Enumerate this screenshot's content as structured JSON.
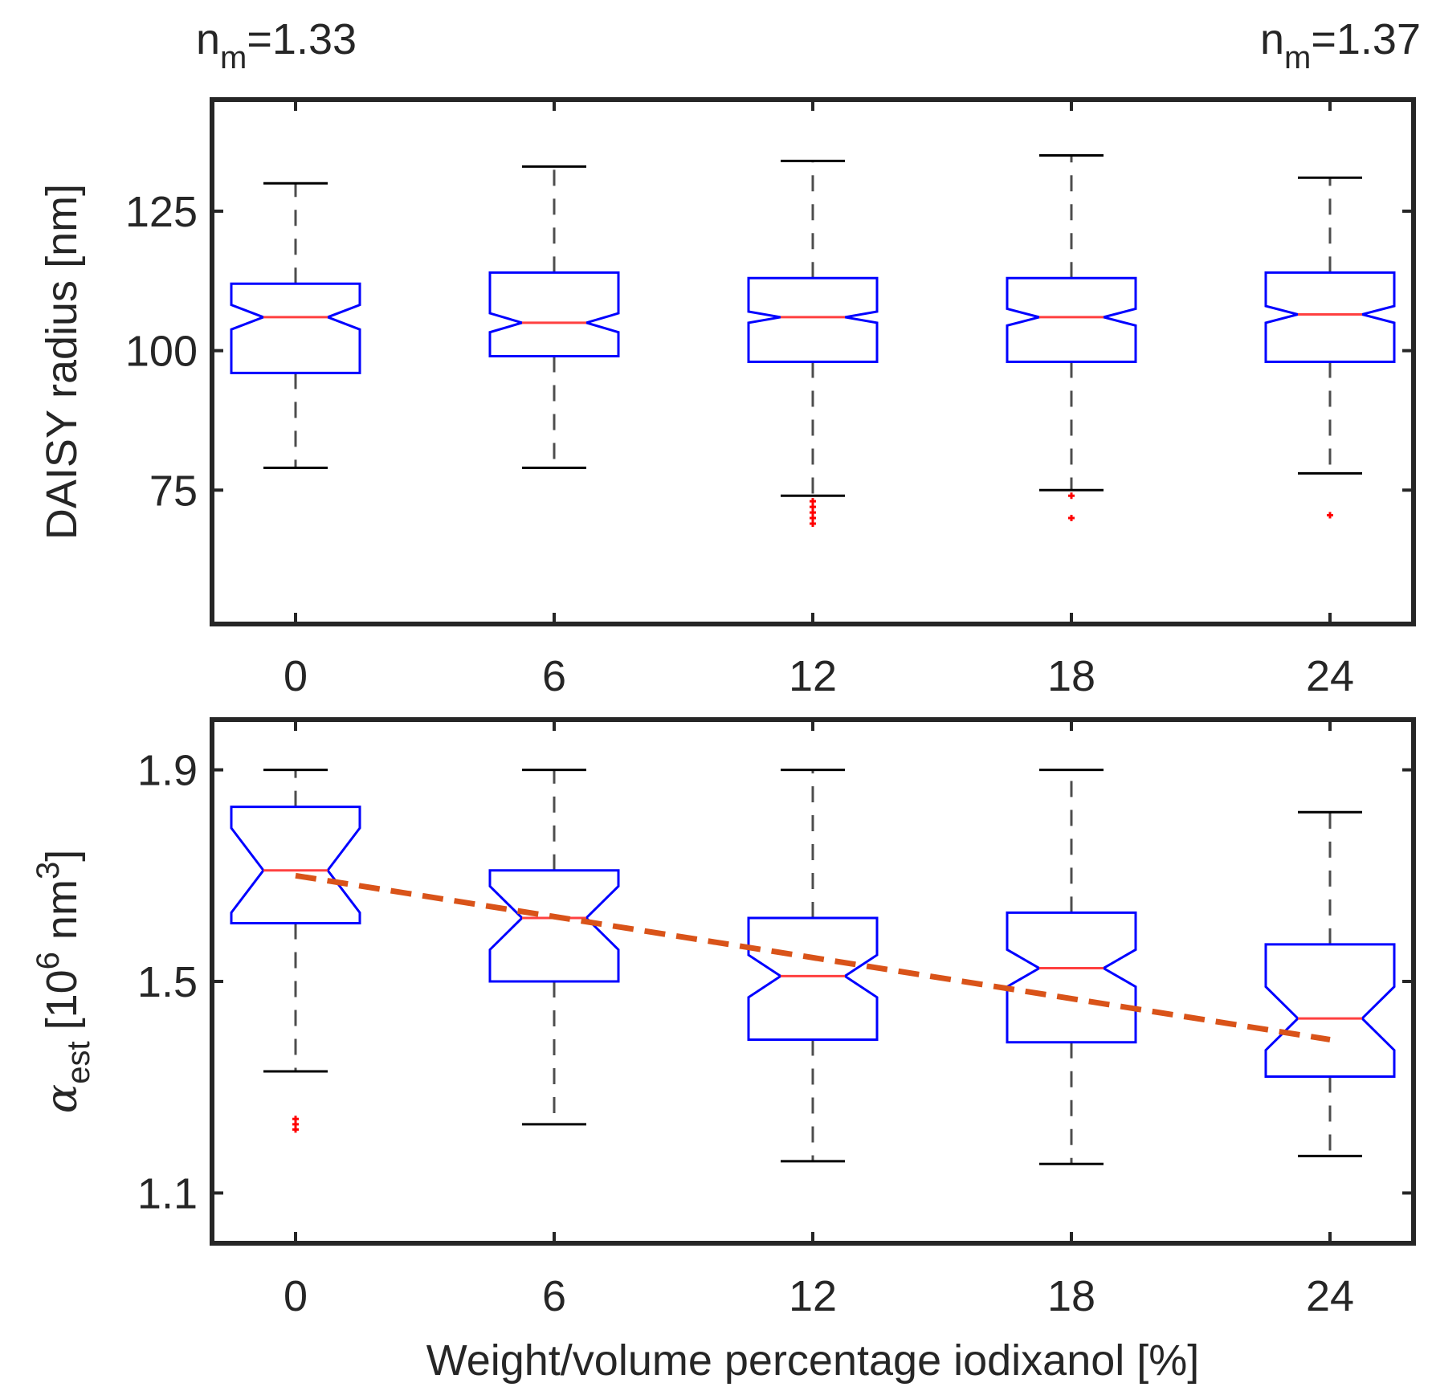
{
  "colors": {
    "axis": "#262626",
    "box": "#0000ff",
    "median": "#ff4040",
    "whisker": "#000000",
    "whisker_dash": "#4d4d4d",
    "outlier": "#ff0000",
    "trend": "#d95319"
  },
  "annotations": {
    "left": {
      "base": "n",
      "sub": "m",
      "text": "=1.33"
    },
    "right": {
      "base": "n",
      "sub": "m",
      "text": "=1.37"
    }
  },
  "chart_data": [
    {
      "type": "boxplot",
      "title": "",
      "ylabel": "DAISY radius [nm]",
      "xlabel": "",
      "categories": [
        "0",
        "6",
        "12",
        "18",
        "24"
      ],
      "yticks": [
        "75",
        "100",
        "125"
      ],
      "ylim": [
        51,
        145
      ],
      "notched": true,
      "boxes": [
        {
          "category": "0",
          "whisker_low": 79,
          "q1": 96,
          "median": 106,
          "q3": 112,
          "whisker_high": 130,
          "notch_low": 103.8,
          "notch_high": 108.2,
          "outliers": []
        },
        {
          "category": "6",
          "whisker_low": 79,
          "q1": 99,
          "median": 105,
          "q3": 114,
          "whisker_high": 133,
          "notch_low": 103.3,
          "notch_high": 106.7,
          "outliers": []
        },
        {
          "category": "12",
          "whisker_low": 74,
          "q1": 98,
          "median": 106,
          "q3": 113,
          "whisker_high": 134,
          "notch_low": 105.0,
          "notch_high": 107.0,
          "outliers": [
            73,
            72,
            71,
            70,
            69
          ]
        },
        {
          "category": "18",
          "whisker_low": 75,
          "q1": 98,
          "median": 106,
          "q3": 113,
          "whisker_high": 135,
          "notch_low": 104.5,
          "notch_high": 107.5,
          "outliers": [
            74,
            70
          ]
        },
        {
          "category": "24",
          "whisker_low": 78,
          "q1": 98,
          "median": 106.5,
          "q3": 114,
          "whisker_high": 131,
          "notch_low": 105.0,
          "notch_high": 108.0,
          "outliers": [
            70.5
          ]
        }
      ]
    },
    {
      "type": "boxplot",
      "title": "",
      "ylabel": {
        "symbol": "α",
        "symbol_sub": "est",
        "pre": "[10",
        "pow1": "6",
        "mid": " nm",
        "pow2": "3",
        "post": "]"
      },
      "xlabel": "Weight/volume percentage iodixanol [%]",
      "categories": [
        "0",
        "6",
        "12",
        "18",
        "24"
      ],
      "yticks": [
        "1.1",
        "1.5",
        "1.9"
      ],
      "ylim": [
        1.005,
        1.995
      ],
      "notched": true,
      "boxes": [
        {
          "category": "0",
          "whisker_low": 1.33,
          "q1": 1.61,
          "median": 1.71,
          "q3": 1.83,
          "whisker_high": 1.9,
          "notch_low": 1.63,
          "notch_high": 1.79,
          "outliers": [
            1.24,
            1.23,
            1.22
          ]
        },
        {
          "category": "6",
          "whisker_low": 1.23,
          "q1": 1.5,
          "median": 1.62,
          "q3": 1.71,
          "whisker_high": 1.9,
          "notch_low": 1.56,
          "notch_high": 1.68,
          "outliers": []
        },
        {
          "category": "12",
          "whisker_low": 1.16,
          "q1": 1.39,
          "median": 1.51,
          "q3": 1.62,
          "whisker_high": 1.9,
          "notch_low": 1.47,
          "notch_high": 1.55,
          "outliers": []
        },
        {
          "category": "18",
          "whisker_low": 1.155,
          "q1": 1.385,
          "median": 1.525,
          "q3": 1.63,
          "whisker_high": 1.9,
          "notch_low": 1.49,
          "notch_high": 1.56,
          "outliers": []
        },
        {
          "category": "24",
          "whisker_low": 1.17,
          "q1": 1.32,
          "median": 1.43,
          "q3": 1.57,
          "whisker_high": 1.82,
          "notch_low": 1.37,
          "notch_high": 1.49,
          "outliers": []
        }
      ],
      "trendline": {
        "x": [
          "0",
          "24"
        ],
        "y": [
          1.7,
          1.39
        ],
        "style": "dashed"
      }
    }
  ]
}
